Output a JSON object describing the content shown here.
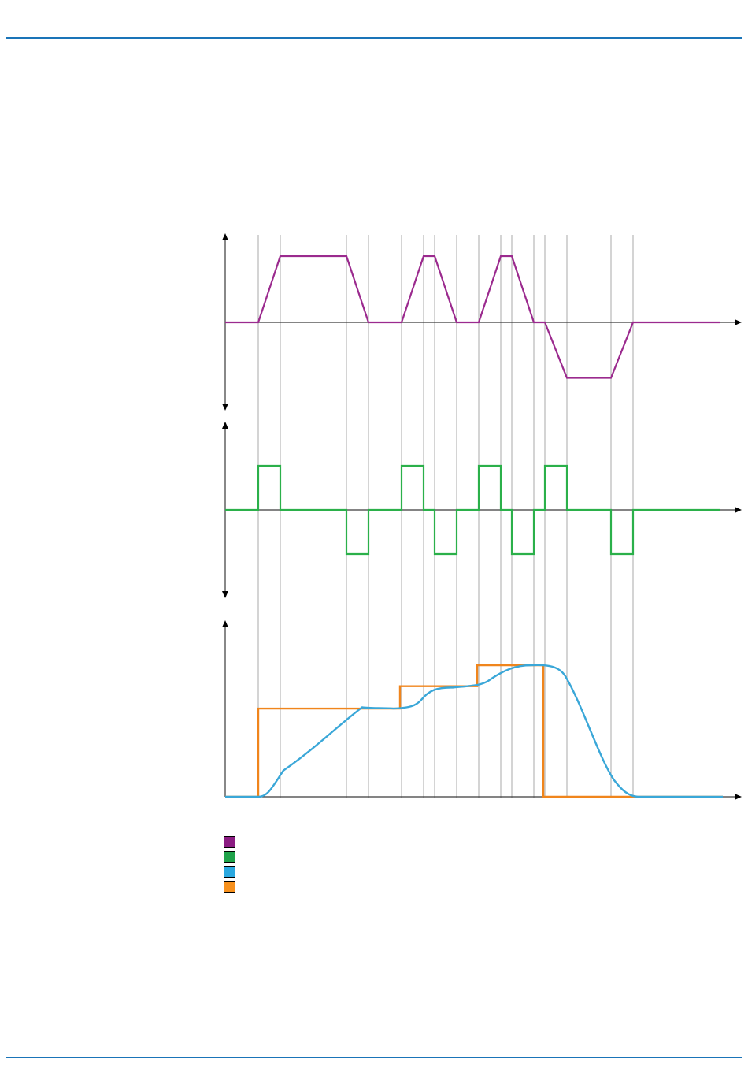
{
  "page": {
    "rule_color": "#1a74b8"
  },
  "chart_data": {
    "type": "line",
    "title": "",
    "x": [
      0,
      1,
      2,
      3,
      4,
      5,
      6,
      7,
      8,
      9,
      10,
      11,
      12,
      13,
      14,
      15,
      16,
      17,
      18,
      19,
      20,
      21,
      22
    ],
    "panels": [
      {
        "name": "panel-1",
        "ylabel": "",
        "series": [
          {
            "color": "#9b2a8e",
            "values": [
              0,
              0,
              1,
              1,
              0,
              0,
              1,
              1,
              0,
              0,
              1,
              1,
              0,
              0,
              -0.84,
              -0.84,
              0,
              0
            ]
          }
        ]
      },
      {
        "name": "panel-2",
        "ylabel": "",
        "series": [
          {
            "color": "#2bb04a",
            "values": [
              0,
              1,
              0,
              -1,
              0,
              1,
              0,
              -1,
              0,
              1,
              0,
              -1,
              0,
              1,
              0,
              -1,
              0
            ]
          }
        ]
      },
      {
        "name": "panel-3",
        "ylabel": "",
        "series": [
          {
            "color": "#f0851c",
            "style": "step",
            "values": [
              0,
              0.67,
              0.67,
              0.84,
              0.84,
              1.0,
              0
            ]
          },
          {
            "color": "#3aa7d8",
            "style": "smooth",
            "values": [
              0,
              0.2,
              0.45,
              0.67,
              0.67,
              0.83,
              0.84,
              1.0,
              1.0,
              0.1,
              0
            ]
          }
        ]
      }
    ],
    "legend": {
      "placement": "bottom-left",
      "entries": [
        {
          "color": "#8b1c82",
          "label": ""
        },
        {
          "color": "#1fa34a",
          "label": ""
        },
        {
          "color": "#2aa8e0",
          "label": ""
        },
        {
          "color": "#f7911e",
          "label": ""
        }
      ]
    },
    "grid": "vertical"
  }
}
